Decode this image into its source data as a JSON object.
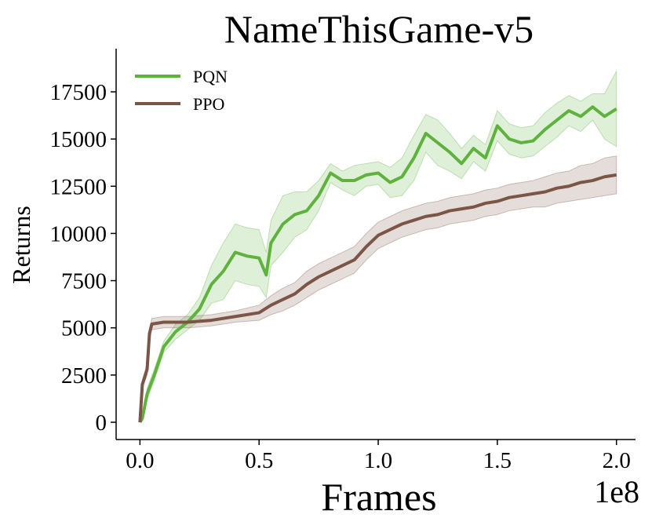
{
  "chart_data": {
    "type": "line",
    "title": "NameThisGame-v5",
    "x_label": "Frames",
    "x_offset_label": "1e8",
    "y_label": "Returns",
    "xlim": [
      -0.1,
      2.08
    ],
    "ylim": [
      -915,
      19786
    ],
    "xticks": [
      {
        "value": 0,
        "label": "0.0"
      },
      0.5,
      {
        "value": 1,
        "label": "1.0"
      },
      1.5,
      {
        "value": 2,
        "label": "2.0"
      }
    ],
    "yticks": [
      0,
      2500,
      5000,
      7500,
      10000,
      12500,
      15000,
      17500
    ],
    "grid": false,
    "legend": "upper left",
    "series": [
      {
        "name": "PQN",
        "color": "#5fb23e",
        "x": [
          0,
          0.01,
          0.03,
          0.06,
          0.1,
          0.15,
          0.2,
          0.25,
          0.3,
          0.35,
          0.4,
          0.45,
          0.5,
          0.53,
          0.55,
          0.6,
          0.65,
          0.7,
          0.75,
          0.8,
          0.85,
          0.9,
          0.95,
          1,
          1.05,
          1.1,
          1.15,
          1.2,
          1.25,
          1.3,
          1.35,
          1.4,
          1.45,
          1.5,
          1.55,
          1.6,
          1.65,
          1.7,
          1.75,
          1.8,
          1.85,
          1.9,
          1.95,
          2
        ],
        "values": [
          0,
          200,
          1500,
          2500,
          4000,
          4800,
          5300,
          6000,
          7300,
          8000,
          9000,
          8800,
          8700,
          7800,
          9500,
          10500,
          11000,
          11200,
          12000,
          13200,
          12800,
          12800,
          13100,
          13200,
          12700,
          13000,
          14000,
          15300,
          14800,
          14300,
          13700,
          14500,
          14000,
          15700,
          15000,
          14800,
          14900,
          15500,
          16000,
          16500,
          16200,
          16700,
          16200,
          16600
        ],
        "lower": [
          0,
          100,
          1200,
          2200,
          3700,
          4400,
          4900,
          5400,
          6300,
          6500,
          7500,
          7300,
          7200,
          6600,
          8300,
          9000,
          9800,
          10200,
          11200,
          12700,
          12300,
          12000,
          12500,
          12600,
          11900,
          12000,
          12800,
          14300,
          13600,
          13300,
          12900,
          13800,
          13300,
          14900,
          14200,
          14000,
          14100,
          14600,
          15100,
          15700,
          15400,
          16000,
          15000,
          14600
        ],
        "upper": [
          0,
          300,
          1800,
          2800,
          4300,
          5200,
          5700,
          6600,
          8300,
          9500,
          10500,
          10300,
          10200,
          9000,
          10700,
          12000,
          12200,
          12200,
          12800,
          13700,
          13300,
          13600,
          13700,
          13800,
          13500,
          14000,
          15200,
          16300,
          16000,
          15300,
          14500,
          15200,
          14700,
          16500,
          15800,
          15600,
          15700,
          16400,
          16900,
          17300,
          17000,
          17400,
          17400,
          18600
        ]
      },
      {
        "name": "PPO",
        "color": "#7b5546",
        "x": [
          0,
          0.01,
          0.03,
          0.04,
          0.05,
          0.1,
          0.2,
          0.3,
          0.4,
          0.5,
          0.55,
          0.6,
          0.65,
          0.7,
          0.75,
          0.8,
          0.85,
          0.9,
          0.95,
          1,
          1.05,
          1.1,
          1.15,
          1.2,
          1.25,
          1.3,
          1.35,
          1.4,
          1.45,
          1.5,
          1.55,
          1.6,
          1.65,
          1.7,
          1.75,
          1.8,
          1.85,
          1.9,
          1.95,
          2
        ],
        "values": [
          0,
          2000,
          2800,
          4700,
          5200,
          5300,
          5300,
          5400,
          5600,
          5800,
          6200,
          6500,
          6800,
          7300,
          7700,
          8000,
          8300,
          8600,
          9300,
          9900,
          10200,
          10500,
          10700,
          10900,
          11000,
          11200,
          11300,
          11400,
          11600,
          11700,
          11900,
          12000,
          12100,
          12200,
          12400,
          12500,
          12700,
          12800,
          13000,
          13100
        ],
        "lower": [
          0,
          1800,
          2500,
          4400,
          4900,
          5000,
          5000,
          5100,
          5300,
          5400,
          5700,
          5900,
          6200,
          6600,
          7000,
          7300,
          7600,
          7900,
          8600,
          9200,
          9500,
          9800,
          10000,
          10200,
          10300,
          10500,
          10600,
          10700,
          10900,
          11000,
          11200,
          11300,
          11400,
          11400,
          11600,
          11700,
          11800,
          11900,
          12000,
          12100
        ],
        "upper": [
          0,
          2200,
          3100,
          5000,
          5500,
          5600,
          5600,
          5700,
          5900,
          6200,
          6700,
          7100,
          7400,
          8000,
          8400,
          8700,
          9000,
          9300,
          10000,
          10600,
          10900,
          11200,
          11400,
          11600,
          11700,
          11900,
          12000,
          12100,
          12300,
          12400,
          12600,
          12700,
          12800,
          13000,
          13200,
          13300,
          13600,
          13700,
          14000,
          14100
        ]
      }
    ]
  }
}
